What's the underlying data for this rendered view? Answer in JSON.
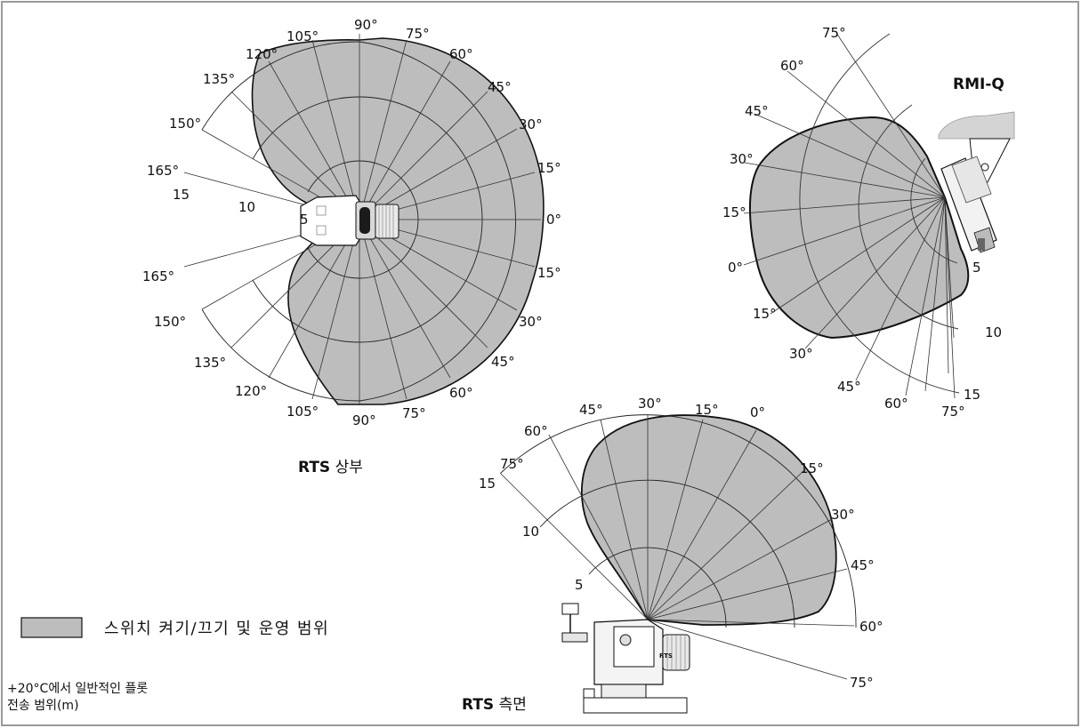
{
  "top_view": {
    "caption_bold": "RTS",
    "caption_rest": " 상부",
    "angle_labels_right": [
      "90°",
      "75°",
      "60°",
      "45°",
      "30°",
      "15°",
      "0°",
      "15°",
      "30°",
      "45°",
      "60°",
      "75°",
      "90°"
    ],
    "angle_labels_left": [
      "105°",
      "120°",
      "135°",
      "150°",
      "165°",
      "165°",
      "150°",
      "135°",
      "120°",
      "105°"
    ],
    "range_labels": [
      "15",
      "10",
      "5"
    ]
  },
  "side_view": {
    "caption_bold": "RTS",
    "caption_rest": " 측면",
    "angle_labels": [
      "75°",
      "60°",
      "45°",
      "30°",
      "15°",
      "0°",
      "15°",
      "30°",
      "45°",
      "60°",
      "75°"
    ],
    "range_labels": [
      "15",
      "10",
      "5"
    ],
    "device_label": "RTS"
  },
  "rmi_view": {
    "title": "RMI-Q",
    "angle_labels": [
      "75°",
      "60°",
      "45°",
      "30°",
      "15°",
      "0°",
      "15°",
      "30°",
      "45°",
      "60°",
      "75°"
    ],
    "range_labels": [
      "5",
      "10",
      "15"
    ]
  },
  "legend": {
    "label": "스위치 켜기/끄기 및 운영 범위",
    "fill_color": "#bdbdbd"
  },
  "note": {
    "line1": "+20°C에서 일반적인 플롯",
    "line2": "전송 범위(m)"
  },
  "colors": {
    "frame": "#9a9a9a",
    "region": "#bdbdbd",
    "outline": "#111111"
  }
}
